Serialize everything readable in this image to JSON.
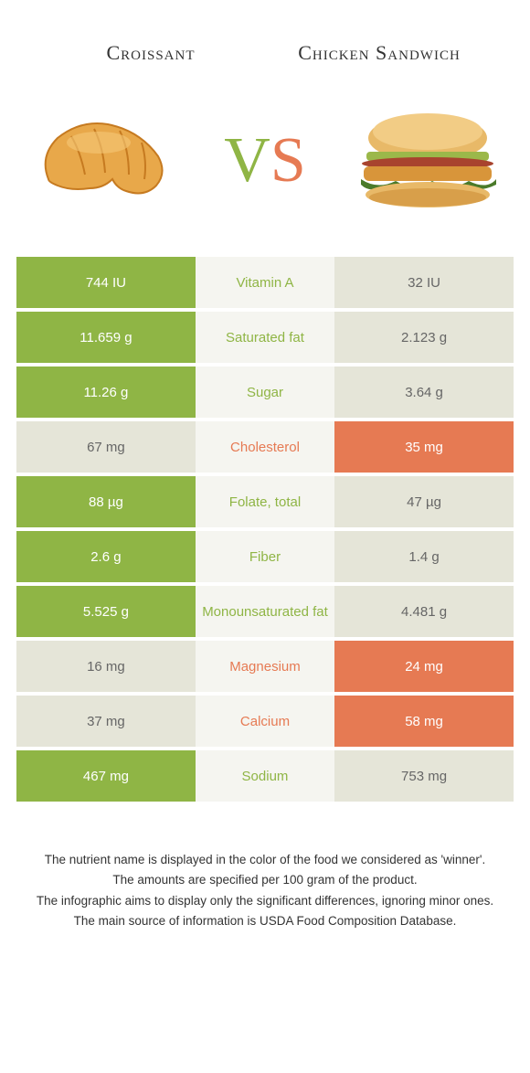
{
  "colors": {
    "green": "#8fb545",
    "orange": "#e67a53",
    "mid_bg": "#f5f5f0",
    "neutral": "#e5e5d8",
    "mid_text_green": "#8fb545",
    "mid_text_orange": "#e67a53"
  },
  "left_food": "Croissant",
  "right_food": "Chicken Sandwich",
  "vs": {
    "v": "V",
    "s": "S"
  },
  "rows": [
    {
      "label": "Vitamin A",
      "left": "744 IU",
      "right": "32 IU",
      "winner": "left"
    },
    {
      "label": "Saturated fat",
      "left": "11.659 g",
      "right": "2.123 g",
      "winner": "left"
    },
    {
      "label": "Sugar",
      "left": "11.26 g",
      "right": "3.64 g",
      "winner": "left"
    },
    {
      "label": "Cholesterol",
      "left": "67 mg",
      "right": "35 mg",
      "winner": "right"
    },
    {
      "label": "Folate, total",
      "left": "88 µg",
      "right": "47 µg",
      "winner": "left"
    },
    {
      "label": "Fiber",
      "left": "2.6 g",
      "right": "1.4 g",
      "winner": "left"
    },
    {
      "label": "Monounsaturated fat",
      "left": "5.525 g",
      "right": "4.481 g",
      "winner": "left"
    },
    {
      "label": "Magnesium",
      "left": "16 mg",
      "right": "24 mg",
      "winner": "right"
    },
    {
      "label": "Calcium",
      "left": "37 mg",
      "right": "58 mg",
      "winner": "right"
    },
    {
      "label": "Sodium",
      "left": "467 mg",
      "right": "753 mg",
      "winner": "left"
    }
  ],
  "footer": [
    "The nutrient name is displayed in the color of the food we considered as 'winner'.",
    "The amounts are specified per 100 gram of the product.",
    "The infographic aims to display only the significant differences, ignoring minor ones.",
    "The main source of information is USDA Food Composition Database."
  ]
}
